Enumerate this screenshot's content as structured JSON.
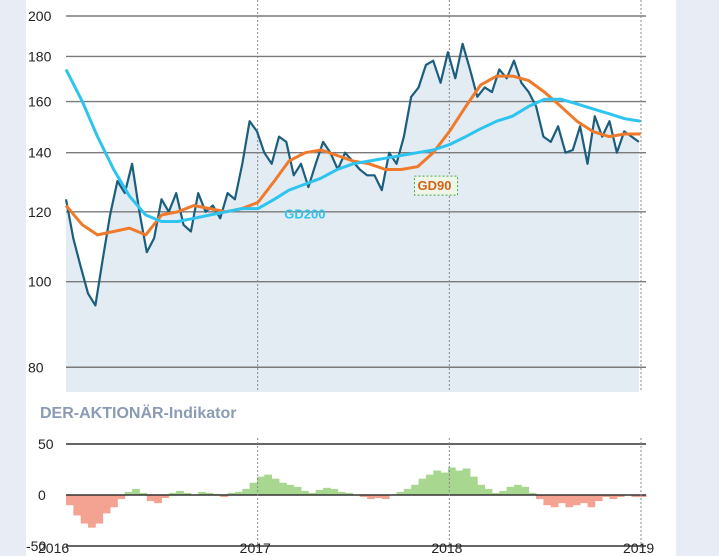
{
  "chart_data": [
    {
      "type": "line",
      "x_axis_type": "date",
      "y_scale": "log",
      "ylim": [
        75,
        200
      ],
      "y_ticks": [
        80,
        100,
        120,
        140,
        160,
        180,
        200
      ],
      "x_ticks": [
        "2016",
        "2017",
        "2018",
        "2019"
      ],
      "grid": true,
      "series": [
        {
          "name": "",
          "color": "#1b5e7e",
          "fill": "#e3ebf3",
          "x": [
            "2016-01-01",
            "2016-01-15",
            "2016-01-29",
            "2016-02-12",
            "2016-02-26",
            "2016-03-11",
            "2016-03-25",
            "2016-04-08",
            "2016-04-22",
            "2016-05-06",
            "2016-05-20",
            "2016-06-03",
            "2016-06-17",
            "2016-07-01",
            "2016-07-15",
            "2016-07-29",
            "2016-08-12",
            "2016-08-26",
            "2016-09-09",
            "2016-09-23",
            "2016-10-07",
            "2016-10-21",
            "2016-11-04",
            "2016-11-18",
            "2016-12-02",
            "2016-12-16",
            "2016-12-30",
            "2017-01-13",
            "2017-01-27",
            "2017-02-10",
            "2017-02-24",
            "2017-03-10",
            "2017-03-24",
            "2017-04-07",
            "2017-04-21",
            "2017-05-05",
            "2017-05-19",
            "2017-06-02",
            "2017-06-16",
            "2017-06-30",
            "2017-07-14",
            "2017-07-28",
            "2017-08-11",
            "2017-08-25",
            "2017-09-08",
            "2017-09-22",
            "2017-10-06",
            "2017-10-20",
            "2017-11-03",
            "2017-11-17",
            "2017-12-01",
            "2017-12-15",
            "2017-12-29",
            "2018-01-12",
            "2018-01-26",
            "2018-02-09",
            "2018-02-23",
            "2018-03-09",
            "2018-03-23",
            "2018-04-06",
            "2018-04-20",
            "2018-05-04",
            "2018-05-18",
            "2018-06-01",
            "2018-06-15",
            "2018-06-29",
            "2018-07-13",
            "2018-07-27",
            "2018-08-10",
            "2018-08-24",
            "2018-09-07",
            "2018-09-21",
            "2018-10-05",
            "2018-10-19",
            "2018-11-02",
            "2018-11-16",
            "2018-11-30",
            "2018-12-14",
            "2018-12-28"
          ],
          "values": [
            124,
            112,
            104,
            97,
            94,
            106,
            119,
            130,
            126,
            136,
            120,
            108,
            112,
            124,
            120,
            126,
            116,
            114,
            126,
            120,
            122,
            118,
            126,
            124,
            136,
            152,
            148,
            140,
            136,
            146,
            144,
            132,
            136,
            128,
            136,
            144,
            140,
            134,
            140,
            137,
            134,
            132,
            132,
            127,
            140,
            136,
            146,
            162,
            166,
            176,
            178,
            168,
            182,
            170,
            186,
            174,
            162,
            166,
            164,
            174,
            170,
            178,
            168,
            164,
            158,
            146,
            144,
            150,
            140,
            141,
            150,
            136,
            154,
            146,
            152,
            140,
            148,
            146,
            144
          ]
        },
        {
          "name": "GD90",
          "color": "#f07a2b",
          "x": [
            "2016-01-01",
            "2016-02-01",
            "2016-03-01",
            "2016-04-01",
            "2016-05-01",
            "2016-06-01",
            "2016-07-01",
            "2016-08-01",
            "2016-09-01",
            "2016-10-01",
            "2016-11-01",
            "2016-12-01",
            "2017-01-01",
            "2017-02-01",
            "2017-03-01",
            "2017-04-01",
            "2017-05-01",
            "2017-06-01",
            "2017-07-01",
            "2017-08-01",
            "2017-09-01",
            "2017-10-01",
            "2017-11-01",
            "2017-12-01",
            "2018-01-01",
            "2018-02-01",
            "2018-03-01",
            "2018-04-01",
            "2018-05-01",
            "2018-06-01",
            "2018-07-01",
            "2018-08-01",
            "2018-09-01",
            "2018-10-01",
            "2018-11-01",
            "2018-12-01",
            "2018-12-31"
          ],
          "values": [
            122,
            116,
            113,
            114,
            115,
            113,
            119,
            120,
            122,
            121,
            120,
            121,
            123,
            130,
            137,
            140,
            141,
            139,
            137,
            136,
            134,
            134,
            135,
            140,
            148,
            158,
            167,
            171,
            171,
            169,
            164,
            158,
            152,
            148,
            146,
            147,
            147
          ]
        },
        {
          "name": "GD200",
          "color": "#2ec4f0",
          "x": [
            "2016-01-01",
            "2016-02-01",
            "2016-03-01",
            "2016-04-01",
            "2016-05-01",
            "2016-06-01",
            "2016-07-01",
            "2016-08-01",
            "2016-09-01",
            "2016-10-01",
            "2016-11-01",
            "2016-12-01",
            "2017-01-01",
            "2017-02-01",
            "2017-03-01",
            "2017-04-01",
            "2017-05-01",
            "2017-06-01",
            "2017-07-01",
            "2017-08-01",
            "2017-09-01",
            "2017-10-01",
            "2017-11-01",
            "2017-12-01",
            "2018-01-01",
            "2018-02-01",
            "2018-03-01",
            "2018-04-01",
            "2018-05-01",
            "2018-06-01",
            "2018-07-01",
            "2018-08-01",
            "2018-09-01",
            "2018-10-01",
            "2018-11-01",
            "2018-12-01",
            "2018-12-31"
          ],
          "values": [
            174,
            160,
            146,
            134,
            125,
            119,
            117,
            117,
            118,
            119,
            120,
            121,
            121,
            124,
            127,
            129,
            131,
            134,
            136,
            137,
            138,
            139,
            140,
            141,
            143,
            146,
            149,
            152,
            154,
            158,
            161,
            161,
            159,
            157,
            155,
            153,
            152
          ]
        }
      ],
      "labels": [
        {
          "text": "GD200",
          "x": "2017-02-20",
          "y": 118,
          "color": "#2ec4f0"
        },
        {
          "text": "GD90",
          "x": "2017-11-01",
          "y": 127,
          "color": "#d4621a"
        }
      ]
    },
    {
      "type": "area",
      "title": "DER-AKTIONÄR-Indikator",
      "ylim": [
        -50,
        50
      ],
      "y_ticks": [
        50,
        0,
        -50
      ],
      "x_ticks": [
        "2016",
        "2017",
        "2018",
        "2019"
      ],
      "colors": {
        "positive": "#a8d890",
        "negative": "#f4a292"
      },
      "series": [
        {
          "name": "",
          "x": [
            "2016-01-01",
            "2016-01-15",
            "2016-01-29",
            "2016-02-12",
            "2016-02-26",
            "2016-03-11",
            "2016-03-25",
            "2016-04-08",
            "2016-04-22",
            "2016-05-06",
            "2016-05-20",
            "2016-06-03",
            "2016-06-17",
            "2016-07-01",
            "2016-07-15",
            "2016-07-29",
            "2016-08-12",
            "2016-08-26",
            "2016-09-09",
            "2016-09-23",
            "2016-10-07",
            "2016-10-21",
            "2016-11-04",
            "2016-11-18",
            "2016-12-02",
            "2016-12-16",
            "2016-12-30",
            "2017-01-13",
            "2017-01-27",
            "2017-02-10",
            "2017-02-24",
            "2017-03-10",
            "2017-03-24",
            "2017-04-07",
            "2017-04-21",
            "2017-05-05",
            "2017-05-19",
            "2017-06-02",
            "2017-06-16",
            "2017-06-30",
            "2017-07-14",
            "2017-07-28",
            "2017-08-11",
            "2017-08-25",
            "2017-09-08",
            "2017-09-22",
            "2017-10-06",
            "2017-10-20",
            "2017-11-03",
            "2017-11-17",
            "2017-12-01",
            "2017-12-15",
            "2017-12-29",
            "2018-01-12",
            "2018-01-26",
            "2018-02-09",
            "2018-02-23",
            "2018-03-09",
            "2018-03-23",
            "2018-04-06",
            "2018-04-20",
            "2018-05-04",
            "2018-05-18",
            "2018-06-01",
            "2018-06-15",
            "2018-06-29",
            "2018-07-13",
            "2018-07-27",
            "2018-08-10",
            "2018-08-24",
            "2018-09-07",
            "2018-09-21",
            "2018-10-05",
            "2018-10-19",
            "2018-11-02",
            "2018-11-16",
            "2018-11-30",
            "2018-12-14",
            "2018-12-28"
          ],
          "values": [
            -10,
            -20,
            -28,
            -32,
            -28,
            -18,
            -12,
            -4,
            3,
            6,
            2,
            -6,
            -8,
            -3,
            2,
            4,
            2,
            0,
            3,
            2,
            1,
            -2,
            2,
            3,
            6,
            12,
            18,
            20,
            16,
            12,
            10,
            8,
            4,
            2,
            5,
            7,
            6,
            3,
            2,
            0,
            -2,
            -4,
            -3,
            -4,
            0,
            3,
            6,
            10,
            16,
            20,
            24,
            22,
            27,
            24,
            26,
            18,
            10,
            6,
            2,
            4,
            8,
            10,
            8,
            2,
            -4,
            -10,
            -12,
            -8,
            -12,
            -10,
            -8,
            -12,
            -6,
            -2,
            -4,
            -2,
            0,
            -2,
            -2
          ]
        }
      ]
    }
  ]
}
